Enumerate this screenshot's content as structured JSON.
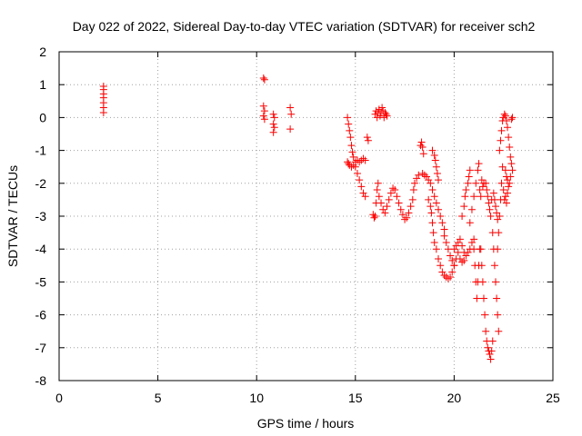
{
  "chart_data": {
    "type": "scatter",
    "title": "Day 022 of 2022, Sidereal Day-to-day VTEC variation (SDTVAR) for receiver sch2",
    "xlabel": "GPS time / hours",
    "ylabel": "SDTVAR / TECUs",
    "xlim": [
      0,
      25
    ],
    "ylim": [
      -8,
      2
    ],
    "xticks": [
      0,
      5,
      10,
      15,
      20,
      25
    ],
    "yticks": [
      -8,
      -7,
      -6,
      -5,
      -4,
      -3,
      -2,
      -1,
      0,
      1,
      2
    ],
    "xtick_labels": [
      "0",
      "5",
      "10",
      "15",
      "20",
      "25"
    ],
    "ytick_labels": [
      "-8",
      "-7",
      "-6",
      "-5",
      "-4",
      "-3",
      "-2",
      "-1",
      "0",
      "1",
      "2"
    ],
    "grid": true,
    "marker": "+",
    "color": "#ff0000",
    "series": [
      {
        "name": "sch2",
        "points": [
          [
            2.25,
            0.95
          ],
          [
            2.25,
            0.85
          ],
          [
            2.25,
            0.72
          ],
          [
            2.25,
            0.6
          ],
          [
            2.25,
            0.45
          ],
          [
            2.25,
            0.3
          ],
          [
            2.25,
            0.15
          ],
          [
            10.35,
            1.2
          ],
          [
            10.4,
            1.15
          ],
          [
            10.35,
            0.35
          ],
          [
            10.4,
            0.2
          ],
          [
            10.35,
            0.05
          ],
          [
            10.4,
            -0.05
          ],
          [
            10.85,
            0.1
          ],
          [
            10.9,
            0.0
          ],
          [
            10.85,
            -0.2
          ],
          [
            10.9,
            -0.3
          ],
          [
            10.85,
            -0.45
          ],
          [
            11.7,
            0.3
          ],
          [
            11.75,
            0.1
          ],
          [
            11.7,
            -0.35
          ],
          [
            14.6,
            0.0
          ],
          [
            14.65,
            -0.2
          ],
          [
            14.7,
            -0.4
          ],
          [
            14.75,
            -0.6
          ],
          [
            14.8,
            -0.85
          ],
          [
            14.85,
            -1.05
          ],
          [
            14.9,
            -1.2
          ],
          [
            14.6,
            -1.35
          ],
          [
            14.65,
            -1.4
          ],
          [
            14.7,
            -1.45
          ],
          [
            14.8,
            -1.5
          ],
          [
            14.9,
            -1.45
          ],
          [
            15.0,
            -1.35
          ],
          [
            15.1,
            -1.3
          ],
          [
            15.2,
            -1.35
          ],
          [
            15.3,
            -1.3
          ],
          [
            15.4,
            -1.25
          ],
          [
            15.5,
            -1.3
          ],
          [
            15.0,
            -1.5
          ],
          [
            15.1,
            -1.7
          ],
          [
            15.2,
            -1.9
          ],
          [
            15.3,
            -2.1
          ],
          [
            15.4,
            -2.3
          ],
          [
            15.5,
            -2.4
          ],
          [
            15.6,
            -0.6
          ],
          [
            15.65,
            -0.7
          ],
          [
            15.9,
            -2.95
          ],
          [
            15.95,
            -3.05
          ],
          [
            16.0,
            -3.0
          ],
          [
            16.05,
            -2.6
          ],
          [
            16.1,
            -2.2
          ],
          [
            16.15,
            -2.0
          ],
          [
            16.0,
            0.1
          ],
          [
            16.05,
            0.2
          ],
          [
            16.1,
            0.0
          ],
          [
            16.15,
            0.15
          ],
          [
            16.2,
            0.25
          ],
          [
            16.25,
            0.05
          ],
          [
            16.3,
            0.15
          ],
          [
            16.35,
            0.3
          ],
          [
            16.4,
            0.2
          ],
          [
            16.45,
            0.0
          ],
          [
            16.5,
            0.15
          ],
          [
            16.55,
            0.1
          ],
          [
            16.6,
            0.05
          ],
          [
            16.2,
            -2.4
          ],
          [
            16.3,
            -2.6
          ],
          [
            16.4,
            -2.8
          ],
          [
            16.5,
            -2.9
          ],
          [
            16.6,
            -2.7
          ],
          [
            16.7,
            -2.5
          ],
          [
            16.8,
            -2.3
          ],
          [
            16.9,
            -2.15
          ],
          [
            17.0,
            -2.2
          ],
          [
            17.1,
            -2.4
          ],
          [
            17.2,
            -2.6
          ],
          [
            17.3,
            -2.8
          ],
          [
            17.4,
            -2.95
          ],
          [
            17.5,
            -3.1
          ],
          [
            17.6,
            -3.05
          ],
          [
            17.7,
            -2.9
          ],
          [
            17.8,
            -2.7
          ],
          [
            17.9,
            -2.5
          ],
          [
            17.95,
            -2.2
          ],
          [
            18.0,
            -2.0
          ],
          [
            18.1,
            -1.85
          ],
          [
            18.2,
            -1.75
          ],
          [
            18.3,
            -0.85
          ],
          [
            18.35,
            -0.75
          ],
          [
            18.4,
            -0.9
          ],
          [
            18.45,
            -1.1
          ],
          [
            18.4,
            -1.7
          ],
          [
            18.5,
            -1.75
          ],
          [
            18.6,
            -1.8
          ],
          [
            18.7,
            -1.9
          ],
          [
            18.8,
            -2.0
          ],
          [
            18.9,
            -2.2
          ],
          [
            18.9,
            -1.0
          ],
          [
            19.0,
            -1.15
          ],
          [
            19.05,
            -1.3
          ],
          [
            19.1,
            -1.5
          ],
          [
            19.15,
            -1.7
          ],
          [
            19.2,
            -1.9
          ],
          [
            18.7,
            -2.5
          ],
          [
            18.8,
            -2.7
          ],
          [
            18.85,
            -2.9
          ],
          [
            18.9,
            -3.2
          ],
          [
            18.95,
            -3.5
          ],
          [
            19.0,
            -3.8
          ],
          [
            19.0,
            -2.4
          ],
          [
            19.1,
            -2.6
          ],
          [
            19.2,
            -2.8
          ],
          [
            19.3,
            -3.0
          ],
          [
            19.4,
            -3.2
          ],
          [
            19.5,
            -3.4
          ],
          [
            19.1,
            -4.0
          ],
          [
            19.2,
            -4.3
          ],
          [
            19.3,
            -4.5
          ],
          [
            19.4,
            -4.7
          ],
          [
            19.5,
            -4.8
          ],
          [
            19.6,
            -4.85
          ],
          [
            19.7,
            -4.9
          ],
          [
            19.8,
            -4.85
          ],
          [
            19.5,
            -3.6
          ],
          [
            19.6,
            -3.8
          ],
          [
            19.7,
            -4.0
          ],
          [
            19.8,
            -4.2
          ],
          [
            19.9,
            -4.35
          ],
          [
            20.0,
            -4.5
          ],
          [
            19.9,
            -4.7
          ],
          [
            20.0,
            -4.5
          ],
          [
            20.1,
            -4.3
          ],
          [
            20.2,
            -4.1
          ],
          [
            20.3,
            -4.3
          ],
          [
            20.4,
            -4.4
          ],
          [
            20.5,
            -4.35
          ],
          [
            20.0,
            -4.0
          ],
          [
            20.1,
            -3.9
          ],
          [
            20.2,
            -3.8
          ],
          [
            20.3,
            -3.7
          ],
          [
            20.4,
            -3.9
          ],
          [
            20.5,
            -4.1
          ],
          [
            20.6,
            -4.2
          ],
          [
            20.4,
            -3.0
          ],
          [
            20.5,
            -2.7
          ],
          [
            20.55,
            -2.4
          ],
          [
            20.6,
            -2.2
          ],
          [
            20.7,
            -2.0
          ],
          [
            20.75,
            -1.8
          ],
          [
            20.8,
            -1.6
          ],
          [
            20.8,
            -3.2
          ],
          [
            20.9,
            -2.8
          ],
          [
            21.0,
            -2.4
          ],
          [
            21.1,
            -2.0
          ],
          [
            21.2,
            -1.6
          ],
          [
            21.25,
            -1.4
          ],
          [
            20.7,
            -4.1
          ],
          [
            20.8,
            -4.0
          ],
          [
            20.9,
            -3.8
          ],
          [
            21.0,
            -3.7
          ],
          [
            21.0,
            -4.0
          ],
          [
            21.05,
            -4.5
          ],
          [
            21.1,
            -5.0
          ],
          [
            21.15,
            -5.5
          ],
          [
            21.2,
            -5.0
          ],
          [
            21.25,
            -4.5
          ],
          [
            21.3,
            -4.0
          ],
          [
            21.3,
            -2.2
          ],
          [
            21.35,
            -2.4
          ],
          [
            21.4,
            -1.9
          ],
          [
            21.45,
            -2.1
          ],
          [
            21.5,
            -2.0
          ],
          [
            21.35,
            -4.0
          ],
          [
            21.4,
            -4.5
          ],
          [
            21.45,
            -5.0
          ],
          [
            21.5,
            -5.5
          ],
          [
            21.55,
            -6.0
          ],
          [
            21.6,
            -6.5
          ],
          [
            21.65,
            -6.8
          ],
          [
            21.7,
            -7.0
          ],
          [
            21.75,
            -7.1
          ],
          [
            21.8,
            -7.2
          ],
          [
            21.85,
            -7.35
          ],
          [
            21.9,
            -7.1
          ],
          [
            21.95,
            -6.8
          ],
          [
            21.6,
            -2.0
          ],
          [
            21.65,
            -2.2
          ],
          [
            21.7,
            -2.4
          ],
          [
            21.75,
            -2.6
          ],
          [
            21.8,
            -2.8
          ],
          [
            21.85,
            -3.0
          ],
          [
            21.9,
            -2.5
          ],
          [
            22.0,
            -2.3
          ],
          [
            22.05,
            -2.5
          ],
          [
            22.1,
            -2.7
          ],
          [
            22.15,
            -2.9
          ],
          [
            22.2,
            -3.1
          ],
          [
            21.95,
            -3.5
          ],
          [
            22.0,
            -4.0
          ],
          [
            22.05,
            -4.5
          ],
          [
            22.1,
            -5.0
          ],
          [
            22.15,
            -5.5
          ],
          [
            22.2,
            -6.0
          ],
          [
            22.25,
            -6.5
          ],
          [
            22.2,
            -4.0
          ],
          [
            22.25,
            -3.5
          ],
          [
            22.3,
            -3.0
          ],
          [
            22.35,
            -2.5
          ],
          [
            22.4,
            -2.0
          ],
          [
            22.45,
            -1.5
          ],
          [
            22.3,
            -1.0
          ],
          [
            22.35,
            -0.7
          ],
          [
            22.4,
            -0.4
          ],
          [
            22.45,
            -0.1
          ],
          [
            22.5,
            0.0
          ],
          [
            22.55,
            0.1
          ],
          [
            22.6,
            0.05
          ],
          [
            22.65,
            -0.1
          ],
          [
            22.7,
            -0.3
          ],
          [
            22.75,
            -0.6
          ],
          [
            22.8,
            -0.9
          ],
          [
            22.85,
            -1.2
          ],
          [
            22.6,
            -1.6
          ],
          [
            22.65,
            -1.8
          ],
          [
            22.7,
            -1.9
          ],
          [
            22.75,
            -2.1
          ],
          [
            22.8,
            -2.0
          ],
          [
            22.85,
            -1.8
          ],
          [
            22.5,
            -2.2
          ],
          [
            22.55,
            -2.5
          ],
          [
            22.6,
            -2.4
          ],
          [
            22.65,
            -2.6
          ],
          [
            22.7,
            -2.3
          ],
          [
            22.9,
            -1.4
          ],
          [
            22.95,
            -1.6
          ],
          [
            22.9,
            -0.05
          ],
          [
            22.95,
            0.0
          ]
        ]
      }
    ]
  }
}
